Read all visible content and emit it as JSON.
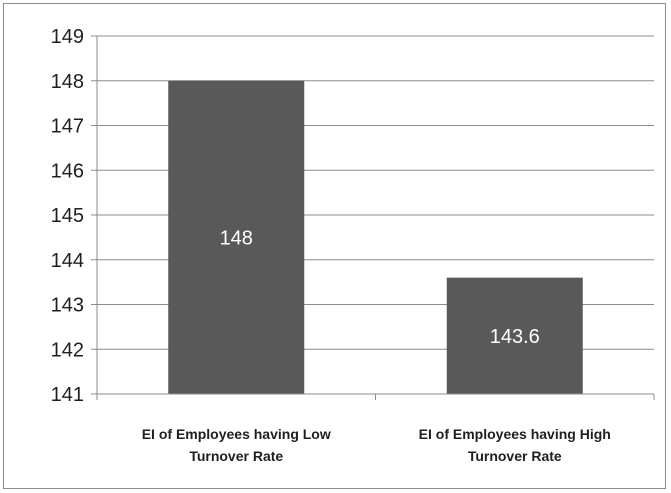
{
  "chart_data": {
    "type": "bar",
    "categories": [
      [
        "EI of Employees having Low",
        "Turnover Rate"
      ],
      [
        "EI of Employees having High",
        "Turnover Rate"
      ]
    ],
    "values": [
      148,
      143.6
    ],
    "data_labels": [
      "148",
      "143.6"
    ],
    "ylim": [
      141,
      149
    ],
    "yticks": [
      "141",
      "142",
      "143",
      "144",
      "145",
      "146",
      "147",
      "148",
      "149"
    ],
    "grid": true,
    "legend": "none",
    "title": "",
    "xlabel": "",
    "ylabel": "",
    "colors": {
      "bar": "#595959",
      "grid": "#8c8c8c",
      "axis": "#8c8c8c"
    }
  }
}
